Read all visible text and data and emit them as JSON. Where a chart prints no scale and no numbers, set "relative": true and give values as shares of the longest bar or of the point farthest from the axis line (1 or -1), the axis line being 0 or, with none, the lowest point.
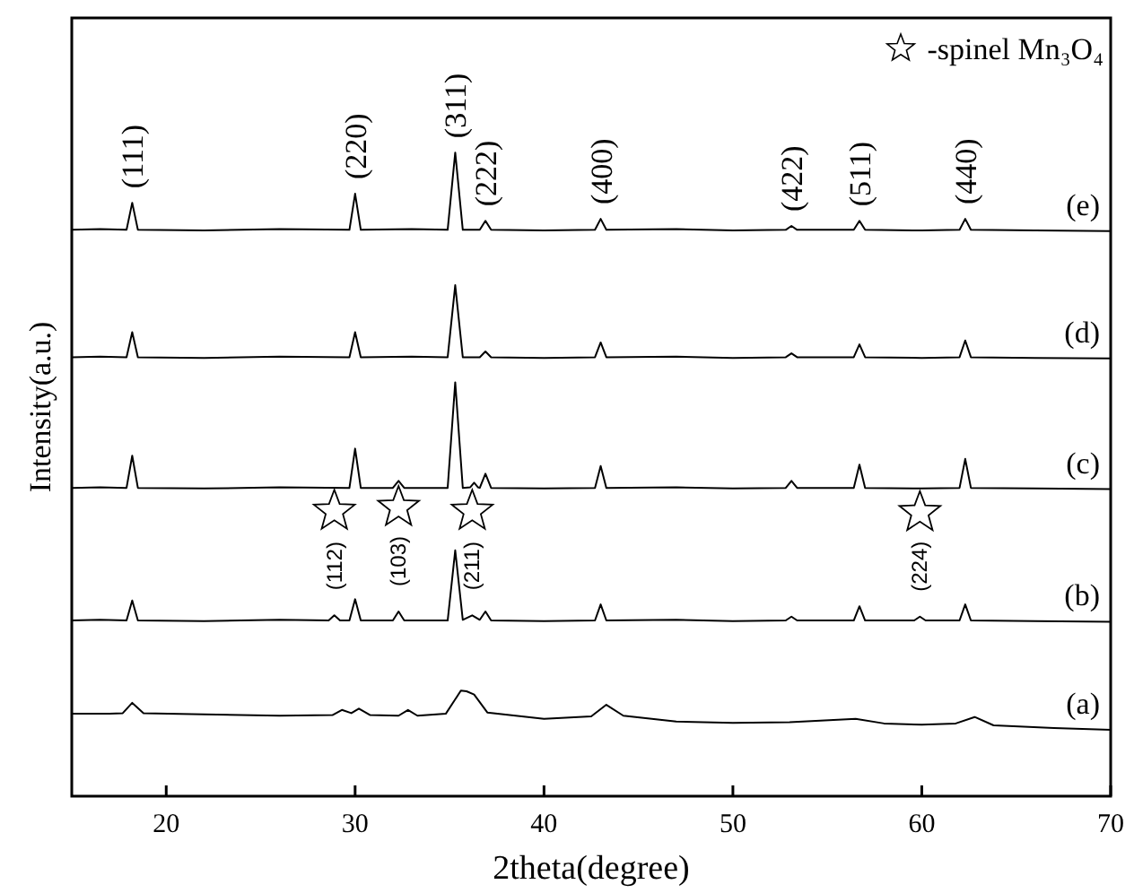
{
  "chart_data": {
    "type": "line",
    "xlabel": "2theta(degree)",
    "ylabel": "Intensity(a.u.)",
    "relative": true,
    "xlim": [
      15,
      70
    ],
    "xticks": [
      20,
      30,
      40,
      50,
      60,
      70
    ],
    "tick_labels": "x",
    "grid": false,
    "legend": false,
    "marker": "none",
    "line_style": "solid",
    "series": [
      {
        "name": "(a)",
        "color": "#000000",
        "x": [
          15,
          17,
          17.7,
          18.2,
          18.8,
          22,
          26,
          28.8,
          29.3,
          29.8,
          30.2,
          30.8,
          32.3,
          32.8,
          33.3,
          34.8,
          35.6,
          35.9,
          36.3,
          37,
          40,
          42.5,
          43.3,
          44.2,
          47,
          50,
          53,
          56.5,
          58,
          60,
          61.8,
          62.8,
          63.8,
          67,
          70
        ],
        "values": [
          0.128,
          0.128,
          0.129,
          0.145,
          0.129,
          0.127,
          0.125,
          0.126,
          0.134,
          0.129,
          0.136,
          0.126,
          0.125,
          0.134,
          0.125,
          0.128,
          0.164,
          0.163,
          0.158,
          0.13,
          0.12,
          0.124,
          0.142,
          0.125,
          0.116,
          0.114,
          0.115,
          0.12,
          0.113,
          0.111,
          0.113,
          0.123,
          0.11,
          0.106,
          0.103
        ]
      },
      {
        "name": "(b)",
        "color": "#000000",
        "x": [
          15,
          16.5,
          17.9,
          18.2,
          18.5,
          22,
          26,
          28.6,
          28.9,
          29.2,
          29.7,
          30,
          30.3,
          32,
          32.3,
          32.6,
          34.9,
          35.3,
          35.7,
          36.2,
          36.6,
          36.9,
          37.2,
          40,
          42.7,
          43,
          43.3,
          47,
          50,
          52.8,
          53.1,
          53.4,
          56.4,
          56.7,
          57,
          59.6,
          59.9,
          60.2,
          62,
          62.3,
          62.6,
          66,
          70
        ],
        "values": [
          0.273,
          0.274,
          0.273,
          0.304,
          0.273,
          0.272,
          0.274,
          0.273,
          0.281,
          0.273,
          0.273,
          0.306,
          0.273,
          0.273,
          0.287,
          0.273,
          0.273,
          0.382,
          0.274,
          0.281,
          0.274,
          0.287,
          0.273,
          0.272,
          0.273,
          0.298,
          0.273,
          0.274,
          0.272,
          0.273,
          0.279,
          0.273,
          0.273,
          0.295,
          0.273,
          0.273,
          0.279,
          0.273,
          0.273,
          0.298,
          0.273,
          0.272,
          0.271
        ]
      },
      {
        "name": "(c)",
        "color": "#000000",
        "x": [
          15,
          16.5,
          17.9,
          18.2,
          18.5,
          22,
          26,
          29.7,
          30,
          30.3,
          32,
          32.3,
          32.6,
          34.9,
          35.3,
          35.7,
          36.1,
          36.3,
          36.5,
          36.6,
          36.9,
          37.2,
          40,
          42.7,
          43,
          43.3,
          47,
          50,
          52.8,
          53.1,
          53.4,
          56.4,
          56.7,
          57,
          60,
          62,
          62.3,
          62.6,
          66,
          70
        ],
        "values": [
          0.479,
          0.48,
          0.479,
          0.529,
          0.479,
          0.478,
          0.48,
          0.479,
          0.54,
          0.479,
          0.479,
          0.49,
          0.479,
          0.479,
          0.643,
          0.479,
          0.48,
          0.487,
          0.48,
          0.479,
          0.501,
          0.479,
          0.478,
          0.479,
          0.513,
          0.479,
          0.48,
          0.478,
          0.479,
          0.49,
          0.479,
          0.479,
          0.515,
          0.479,
          0.478,
          0.479,
          0.524,
          0.479,
          0.478,
          0.477
        ]
      },
      {
        "name": "(d)",
        "color": "#000000",
        "x": [
          15,
          16.5,
          17.9,
          18.2,
          18.5,
          22,
          26,
          29.7,
          30,
          30.3,
          33,
          34.9,
          35.3,
          35.7,
          36.6,
          36.9,
          37.2,
          40,
          42.7,
          43,
          43.3,
          47,
          50,
          52.8,
          53.1,
          53.4,
          56.4,
          56.7,
          57,
          60,
          62,
          62.3,
          62.6,
          66,
          70
        ],
        "values": [
          0.682,
          0.683,
          0.682,
          0.721,
          0.682,
          0.681,
          0.683,
          0.682,
          0.721,
          0.682,
          0.683,
          0.682,
          0.794,
          0.682,
          0.682,
          0.691,
          0.682,
          0.681,
          0.682,
          0.705,
          0.682,
          0.683,
          0.681,
          0.682,
          0.688,
          0.682,
          0.682,
          0.702,
          0.682,
          0.681,
          0.682,
          0.708,
          0.682,
          0.681,
          0.68
        ]
      },
      {
        "name": "(e)",
        "color": "#000000",
        "x": [
          15,
          16.5,
          17.9,
          18.2,
          18.5,
          22,
          26,
          29.7,
          30,
          30.3,
          33,
          34.9,
          35.3,
          35.7,
          36.6,
          36.9,
          37.2,
          40,
          42.7,
          43,
          43.3,
          47,
          50,
          52.8,
          53.1,
          53.4,
          56.4,
          56.7,
          57,
          60,
          62,
          62.3,
          62.6,
          66,
          70
        ],
        "values": [
          0.88,
          0.881,
          0.88,
          0.922,
          0.88,
          0.879,
          0.881,
          0.88,
          0.936,
          0.88,
          0.881,
          0.88,
          1.0,
          0.88,
          0.88,
          0.894,
          0.88,
          0.879,
          0.88,
          0.897,
          0.88,
          0.881,
          0.879,
          0.88,
          0.886,
          0.88,
          0.88,
          0.894,
          0.88,
          0.879,
          0.88,
          0.897,
          0.88,
          0.879,
          0.878
        ]
      }
    ],
    "annotations": [
      "-spinel Mn₃O₄",
      {
        "text": "(111)",
        "x": 18.2,
        "y": 0.922
      },
      {
        "text": "(220)",
        "x": 30,
        "y": 0.936
      },
      {
        "text": "(311)",
        "x": 35.3,
        "y": 1.0
      },
      {
        "text": "(222)",
        "x": 36.9,
        "y": 0.894
      },
      {
        "text": "(400)",
        "x": 43,
        "y": 0.897
      },
      {
        "text": "(422)",
        "x": 53.1,
        "y": 0.886
      },
      {
        "text": "(511)",
        "x": 56.7,
        "y": 0.894
      },
      {
        "text": "(440)",
        "x": 62.3,
        "y": 0.897
      },
      {
        "text": "(112)",
        "x": 28.9,
        "y": 0.281
      },
      {
        "text": "(103)",
        "x": 32.3,
        "y": 0.287
      },
      {
        "text": "(211)",
        "x": 36.2,
        "y": 0.281
      },
      {
        "text": "(224)",
        "x": 59.9,
        "y": 0.279
      }
    ]
  }
}
